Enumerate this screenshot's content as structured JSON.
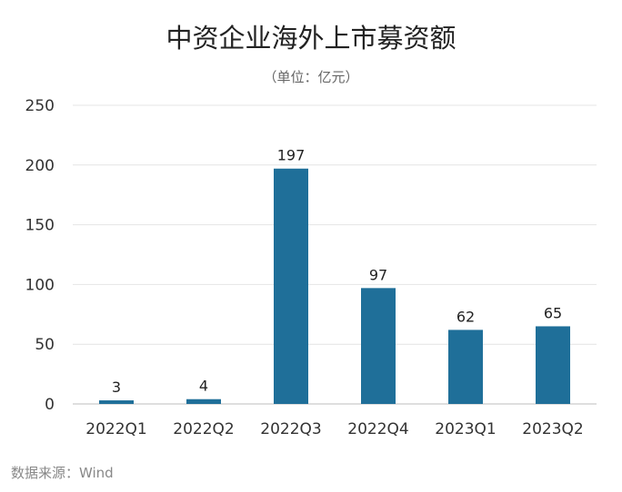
{
  "chart_data": {
    "type": "bar",
    "title": "中资企业海外上市募资额",
    "subtitle": "（单位：亿元）",
    "source": "数据来源：Wind",
    "categories": [
      "2022Q1",
      "2022Q2",
      "2022Q3",
      "2022Q4",
      "2023Q1",
      "2023Q2"
    ],
    "values": [
      3,
      4,
      197,
      97,
      62,
      65
    ],
    "ylim": [
      0,
      250
    ],
    "yticks": [
      0,
      50,
      100,
      150,
      200,
      250
    ],
    "grid": true,
    "bar_color": "#1f6f99"
  }
}
